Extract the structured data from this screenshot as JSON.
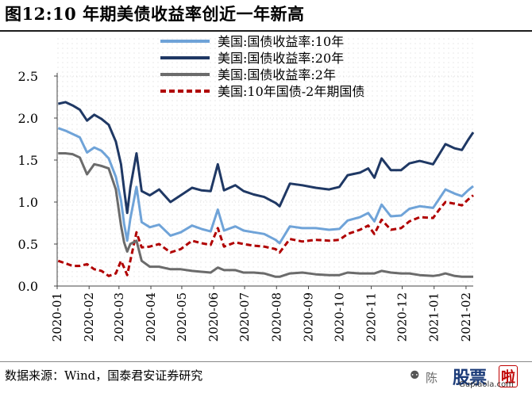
{
  "title": "图12:10 年期美债收益率创近一年新高",
  "source": "数据来源：Wind，国泰君安证券研究",
  "watermark": {
    "weixin_icon": "wechat-icon",
    "chen": "陈",
    "gupiao": "股票",
    "la": "啦",
    "url": "Gupiaola.com"
  },
  "chart_data": {
    "type": "line",
    "ylim": [
      0.0,
      2.5
    ],
    "yticks": [
      "0.0",
      "0.5",
      "1.0",
      "1.5",
      "2.0",
      "2.5"
    ],
    "xlim": [
      "2020-01-01",
      "2021-02-08"
    ],
    "xticks": [
      "2020-01",
      "2020-02",
      "2020-03",
      "2020-04",
      "2020-05",
      "2020-06",
      "2020-07",
      "2020-08",
      "2020-09",
      "2020-10",
      "2020-11",
      "2020-12",
      "2021-01",
      "2021-02"
    ],
    "grid": "dotted",
    "legend_position": "top-right",
    "series": [
      {
        "name": "美国:国债收益率:10年",
        "color": "#6fa3d8",
        "dash": "solid",
        "points": [
          [
            "2020-01-02",
            1.88
          ],
          [
            "2020-01-09",
            1.85
          ],
          [
            "2020-01-16",
            1.81
          ],
          [
            "2020-01-23",
            1.77
          ],
          [
            "2020-01-30",
            1.59
          ],
          [
            "2020-02-06",
            1.65
          ],
          [
            "2020-02-13",
            1.61
          ],
          [
            "2020-02-20",
            1.52
          ],
          [
            "2020-02-27",
            1.3
          ],
          [
            "2020-03-03",
            1.02
          ],
          [
            "2020-03-06",
            0.74
          ],
          [
            "2020-03-09",
            0.54
          ],
          [
            "2020-03-12",
            0.8
          ],
          [
            "2020-03-18",
            1.18
          ],
          [
            "2020-03-23",
            0.76
          ],
          [
            "2020-03-31",
            0.7
          ],
          [
            "2020-04-09",
            0.73
          ],
          [
            "2020-04-20",
            0.6
          ],
          [
            "2020-04-30",
            0.64
          ],
          [
            "2020-05-11",
            0.72
          ],
          [
            "2020-05-20",
            0.68
          ],
          [
            "2020-05-29",
            0.65
          ],
          [
            "2020-06-05",
            0.91
          ],
          [
            "2020-06-11",
            0.66
          ],
          [
            "2020-06-22",
            0.71
          ],
          [
            "2020-06-30",
            0.66
          ],
          [
            "2020-07-10",
            0.64
          ],
          [
            "2020-07-20",
            0.62
          ],
          [
            "2020-07-31",
            0.55
          ],
          [
            "2020-08-04",
            0.51
          ],
          [
            "2020-08-14",
            0.71
          ],
          [
            "2020-08-26",
            0.69
          ],
          [
            "2020-09-08",
            0.69
          ],
          [
            "2020-09-21",
            0.67
          ],
          [
            "2020-10-01",
            0.68
          ],
          [
            "2020-10-09",
            0.78
          ],
          [
            "2020-10-21",
            0.82
          ],
          [
            "2020-10-29",
            0.87
          ],
          [
            "2020-11-04",
            0.77
          ],
          [
            "2020-11-11",
            0.97
          ],
          [
            "2020-11-20",
            0.83
          ],
          [
            "2020-11-30",
            0.84
          ],
          [
            "2020-12-08",
            0.92
          ],
          [
            "2020-12-18",
            0.95
          ],
          [
            "2020-12-31",
            0.93
          ],
          [
            "2021-01-06",
            1.04
          ],
          [
            "2021-01-12",
            1.15
          ],
          [
            "2021-01-21",
            1.1
          ],
          [
            "2021-01-28",
            1.07
          ],
          [
            "2021-02-03",
            1.14
          ],
          [
            "2021-02-08",
            1.19
          ]
        ]
      },
      {
        "name": "美国:国债收益率:20年",
        "color": "#1f3864",
        "dash": "solid",
        "points": [
          [
            "2020-01-02",
            2.17
          ],
          [
            "2020-01-09",
            2.19
          ],
          [
            "2020-01-16",
            2.15
          ],
          [
            "2020-01-23",
            2.1
          ],
          [
            "2020-01-30",
            1.97
          ],
          [
            "2020-02-06",
            2.04
          ],
          [
            "2020-02-13",
            1.99
          ],
          [
            "2020-02-20",
            1.92
          ],
          [
            "2020-02-27",
            1.72
          ],
          [
            "2020-03-03",
            1.45
          ],
          [
            "2020-03-06",
            1.15
          ],
          [
            "2020-03-09",
            0.87
          ],
          [
            "2020-03-12",
            1.17
          ],
          [
            "2020-03-18",
            1.58
          ],
          [
            "2020-03-23",
            1.13
          ],
          [
            "2020-03-31",
            1.08
          ],
          [
            "2020-04-09",
            1.15
          ],
          [
            "2020-04-20",
            1.0
          ],
          [
            "2020-04-30",
            1.08
          ],
          [
            "2020-05-11",
            1.17
          ],
          [
            "2020-05-20",
            1.14
          ],
          [
            "2020-05-29",
            1.13
          ],
          [
            "2020-06-05",
            1.45
          ],
          [
            "2020-06-11",
            1.14
          ],
          [
            "2020-06-22",
            1.2
          ],
          [
            "2020-06-30",
            1.13
          ],
          [
            "2020-07-10",
            1.09
          ],
          [
            "2020-07-20",
            1.06
          ],
          [
            "2020-07-31",
            0.99
          ],
          [
            "2020-08-04",
            0.95
          ],
          [
            "2020-08-14",
            1.22
          ],
          [
            "2020-08-26",
            1.2
          ],
          [
            "2020-09-08",
            1.17
          ],
          [
            "2020-09-21",
            1.15
          ],
          [
            "2020-10-01",
            1.18
          ],
          [
            "2020-10-09",
            1.32
          ],
          [
            "2020-10-21",
            1.35
          ],
          [
            "2020-10-29",
            1.4
          ],
          [
            "2020-11-04",
            1.29
          ],
          [
            "2020-11-11",
            1.52
          ],
          [
            "2020-11-20",
            1.38
          ],
          [
            "2020-11-30",
            1.38
          ],
          [
            "2020-12-08",
            1.46
          ],
          [
            "2020-12-18",
            1.49
          ],
          [
            "2020-12-31",
            1.45
          ],
          [
            "2021-01-06",
            1.57
          ],
          [
            "2021-01-12",
            1.69
          ],
          [
            "2021-01-21",
            1.64
          ],
          [
            "2021-01-28",
            1.62
          ],
          [
            "2021-02-03",
            1.74
          ],
          [
            "2021-02-08",
            1.83
          ]
        ]
      },
      {
        "name": "美国:国债收益率:2年",
        "color": "#6b6b6b",
        "dash": "solid",
        "points": [
          [
            "2020-01-02",
            1.58
          ],
          [
            "2020-01-09",
            1.58
          ],
          [
            "2020-01-16",
            1.57
          ],
          [
            "2020-01-23",
            1.53
          ],
          [
            "2020-01-30",
            1.33
          ],
          [
            "2020-02-06",
            1.45
          ],
          [
            "2020-02-13",
            1.43
          ],
          [
            "2020-02-20",
            1.4
          ],
          [
            "2020-02-27",
            1.15
          ],
          [
            "2020-03-03",
            0.72
          ],
          [
            "2020-03-06",
            0.52
          ],
          [
            "2020-03-09",
            0.41
          ],
          [
            "2020-03-12",
            0.5
          ],
          [
            "2020-03-18",
            0.54
          ],
          [
            "2020-03-23",
            0.3
          ],
          [
            "2020-03-31",
            0.23
          ],
          [
            "2020-04-09",
            0.23
          ],
          [
            "2020-04-20",
            0.2
          ],
          [
            "2020-04-30",
            0.2
          ],
          [
            "2020-05-11",
            0.18
          ],
          [
            "2020-05-20",
            0.17
          ],
          [
            "2020-05-29",
            0.16
          ],
          [
            "2020-06-05",
            0.22
          ],
          [
            "2020-06-11",
            0.19
          ],
          [
            "2020-06-22",
            0.19
          ],
          [
            "2020-06-30",
            0.16
          ],
          [
            "2020-07-10",
            0.16
          ],
          [
            "2020-07-20",
            0.15
          ],
          [
            "2020-07-31",
            0.11
          ],
          [
            "2020-08-04",
            0.11
          ],
          [
            "2020-08-14",
            0.15
          ],
          [
            "2020-08-26",
            0.16
          ],
          [
            "2020-09-08",
            0.14
          ],
          [
            "2020-09-21",
            0.13
          ],
          [
            "2020-10-01",
            0.13
          ],
          [
            "2020-10-09",
            0.16
          ],
          [
            "2020-10-21",
            0.15
          ],
          [
            "2020-10-29",
            0.15
          ],
          [
            "2020-11-04",
            0.15
          ],
          [
            "2020-11-11",
            0.18
          ],
          [
            "2020-11-20",
            0.16
          ],
          [
            "2020-11-30",
            0.15
          ],
          [
            "2020-12-08",
            0.15
          ],
          [
            "2020-12-18",
            0.13
          ],
          [
            "2020-12-31",
            0.12
          ],
          [
            "2021-01-06",
            0.13
          ],
          [
            "2021-01-12",
            0.15
          ],
          [
            "2021-01-21",
            0.12
          ],
          [
            "2021-01-28",
            0.11
          ],
          [
            "2021-02-03",
            0.11
          ],
          [
            "2021-02-08",
            0.11
          ]
        ]
      },
      {
        "name": "美国:10年国债-2年期国债",
        "color": "#b00000",
        "dash": "dashed",
        "points": [
          [
            "2020-01-02",
            0.3
          ],
          [
            "2020-01-09",
            0.27
          ],
          [
            "2020-01-16",
            0.24
          ],
          [
            "2020-01-23",
            0.24
          ],
          [
            "2020-01-30",
            0.26
          ],
          [
            "2020-02-06",
            0.2
          ],
          [
            "2020-02-13",
            0.18
          ],
          [
            "2020-02-20",
            0.12
          ],
          [
            "2020-02-27",
            0.15
          ],
          [
            "2020-03-03",
            0.3
          ],
          [
            "2020-03-06",
            0.22
          ],
          [
            "2020-03-09",
            0.13
          ],
          [
            "2020-03-12",
            0.3
          ],
          [
            "2020-03-18",
            0.64
          ],
          [
            "2020-03-23",
            0.46
          ],
          [
            "2020-03-31",
            0.47
          ],
          [
            "2020-04-09",
            0.5
          ],
          [
            "2020-04-20",
            0.4
          ],
          [
            "2020-04-30",
            0.44
          ],
          [
            "2020-05-11",
            0.54
          ],
          [
            "2020-05-20",
            0.51
          ],
          [
            "2020-05-29",
            0.49
          ],
          [
            "2020-06-05",
            0.69
          ],
          [
            "2020-06-11",
            0.47
          ],
          [
            "2020-06-22",
            0.52
          ],
          [
            "2020-06-30",
            0.5
          ],
          [
            "2020-07-10",
            0.48
          ],
          [
            "2020-07-20",
            0.47
          ],
          [
            "2020-07-31",
            0.44
          ],
          [
            "2020-08-04",
            0.4
          ],
          [
            "2020-08-14",
            0.56
          ],
          [
            "2020-08-26",
            0.53
          ],
          [
            "2020-09-08",
            0.55
          ],
          [
            "2020-09-21",
            0.54
          ],
          [
            "2020-10-01",
            0.55
          ],
          [
            "2020-10-09",
            0.62
          ],
          [
            "2020-10-21",
            0.67
          ],
          [
            "2020-10-29",
            0.72
          ],
          [
            "2020-11-04",
            0.62
          ],
          [
            "2020-11-11",
            0.79
          ],
          [
            "2020-11-20",
            0.67
          ],
          [
            "2020-11-30",
            0.69
          ],
          [
            "2020-12-08",
            0.77
          ],
          [
            "2020-12-18",
            0.82
          ],
          [
            "2020-12-31",
            0.81
          ],
          [
            "2021-01-06",
            0.91
          ],
          [
            "2021-01-12",
            1.0
          ],
          [
            "2021-01-21",
            0.98
          ],
          [
            "2021-01-28",
            0.96
          ],
          [
            "2021-02-03",
            1.03
          ],
          [
            "2021-02-08",
            1.08
          ]
        ]
      }
    ]
  }
}
